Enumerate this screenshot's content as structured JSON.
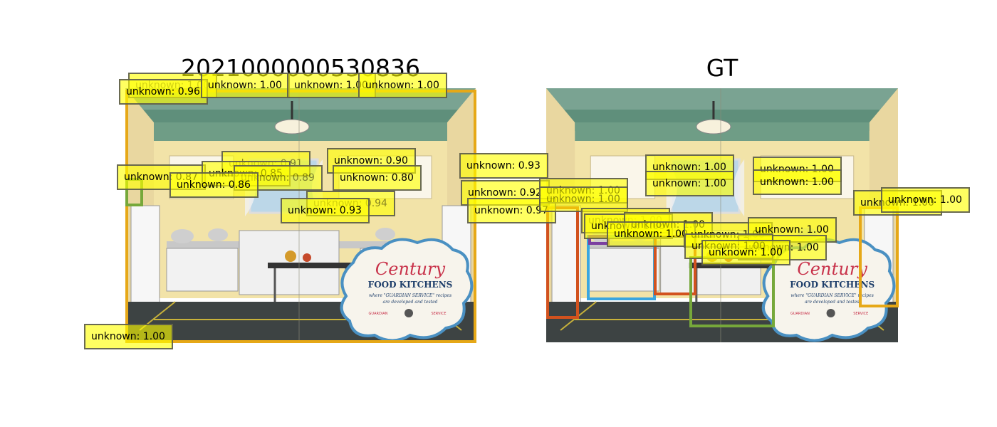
{
  "panels": {
    "left": {
      "title": "2021000000530836"
    },
    "right": {
      "title": "GT"
    }
  },
  "poster": {
    "brand": "Century",
    "headline": "FOOD KITCHENS",
    "tagline_1": "where \"GUARDIAN SERVICE\" recipes",
    "tagline_2": "are developed and tested",
    "footer_left": "GUARDIAN",
    "footer_right": "SERVICE"
  },
  "colors": {
    "label_fill": "#ffff00",
    "box_gold": "#e6a817",
    "box_orange": "#d2521e",
    "box_blue": "#3aa6e0",
    "box_green": "#76a83a",
    "box_purple": "#7b3fa0"
  },
  "left_labels": [
    {
      "text": "unknown: 1.00",
      "faint": true
    },
    {
      "text": "unknown: 0.96"
    },
    {
      "text": "unknown: 1.00"
    },
    {
      "text": "unknown: 1.00"
    },
    {
      "text": "unknown: 1.00"
    },
    {
      "text": "unknown: 0.91",
      "faint": true
    },
    {
      "text": "unknown: 0.90"
    },
    {
      "text": "unknown: 0.87"
    },
    {
      "text": "unknown: 0.85"
    },
    {
      "text": "unknown: 0.89",
      "faint": true
    },
    {
      "text": "unknown: 0.80"
    },
    {
      "text": "unknown: 0.86"
    },
    {
      "text": "unknown: 0.94"
    },
    {
      "text": "unknown: 0.93"
    },
    {
      "text": "unknown: 0.93"
    },
    {
      "text": "unknown: 0.92"
    },
    {
      "text": "unknown: 0.97"
    },
    {
      "text": "unknown: 1.00"
    }
  ],
  "right_labels": [
    {
      "text": "unknown: 1.00"
    },
    {
      "text": "unknown: 1.00"
    },
    {
      "text": "unknown: 1.00"
    },
    {
      "text": "unknown: 1.00"
    },
    {
      "text": "unknown: 1.00"
    },
    {
      "text": "unknown: 1.00",
      "faint": true
    },
    {
      "text": "unknown: 1.00"
    },
    {
      "text": "unknown: 1.00"
    },
    {
      "text": "unknown: 1.00",
      "faint": true
    },
    {
      "text": "unknown: 1.00"
    },
    {
      "text": "unknown: 1.00"
    },
    {
      "text": "unknown: 1.00"
    },
    {
      "text": "unknown: 1.00"
    },
    {
      "text": "unknown: 1.00"
    },
    {
      "text": "unknown: 1.00"
    },
    {
      "text": "unknown: 1.00"
    },
    {
      "text": "unknown: 1.00"
    }
  ]
}
